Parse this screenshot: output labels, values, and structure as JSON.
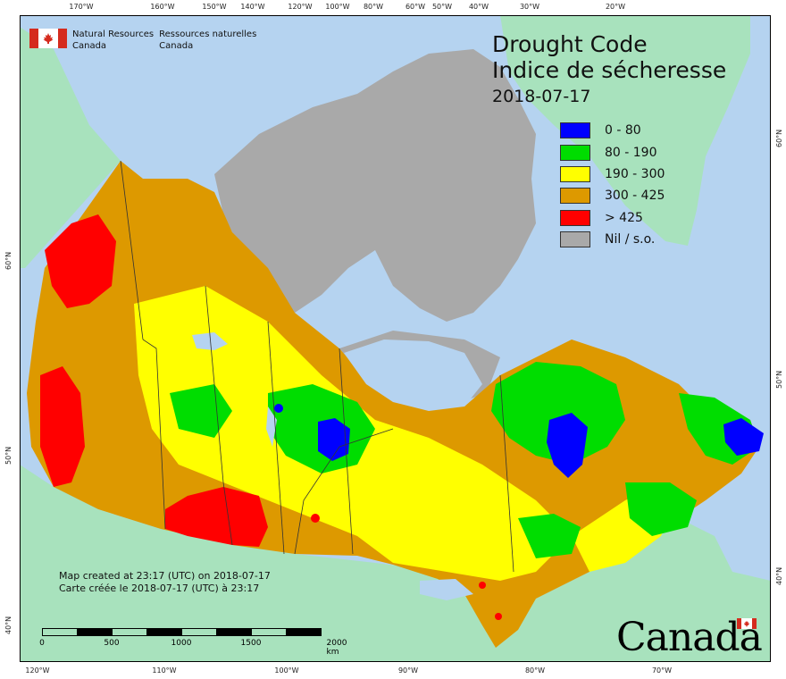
{
  "map_title": {
    "line1": "Drought Code",
    "line2": "Indice de sécheresse",
    "date": "2018-07-17"
  },
  "agency": {
    "en_line1": "Natural Resources",
    "en_line2": "Canada",
    "fr_line1": "Ressources naturelles",
    "fr_line2": "Canada"
  },
  "legend": [
    {
      "label": "0 - 80",
      "color": "#0000ff"
    },
    {
      "label": "80 - 190",
      "color": "#00dd00"
    },
    {
      "label": "190 - 300",
      "color": "#ffff00"
    },
    {
      "label": "300 - 425",
      "color": "#dd9900"
    },
    {
      "label": "> 425",
      "color": "#ff0000"
    },
    {
      "label": "Nil / s.o.",
      "color": "#a9a9a9"
    }
  ],
  "notes": {
    "en": "Map created at 23:17 (UTC) on 2018-07-17",
    "fr": "Carte créée le 2018-07-17 (UTC) à 23:17"
  },
  "scale_bar": {
    "ticks": [
      "0",
      "500",
      "1000",
      "1500",
      "2000  km"
    ]
  },
  "wordmark": "Canada",
  "graticule": {
    "top": [
      "170°W",
      "160°W",
      "150°W",
      "140°W",
      "120°W",
      "100°W",
      "80°W",
      "60°W",
      "50°W",
      "40°W",
      "30°W",
      "20°W"
    ],
    "bottom": [
      "120°W",
      "110°W",
      "100°W",
      "90°W",
      "80°W",
      "70°W"
    ],
    "left": [
      "60°N",
      "50°N",
      "40°N"
    ],
    "right": [
      "60°N",
      "50°N",
      "40°N"
    ]
  },
  "colors": {
    "ocean": "#b5d3f0",
    "land_outside": "#a8e2bd",
    "nil": "#a9a9a9"
  }
}
